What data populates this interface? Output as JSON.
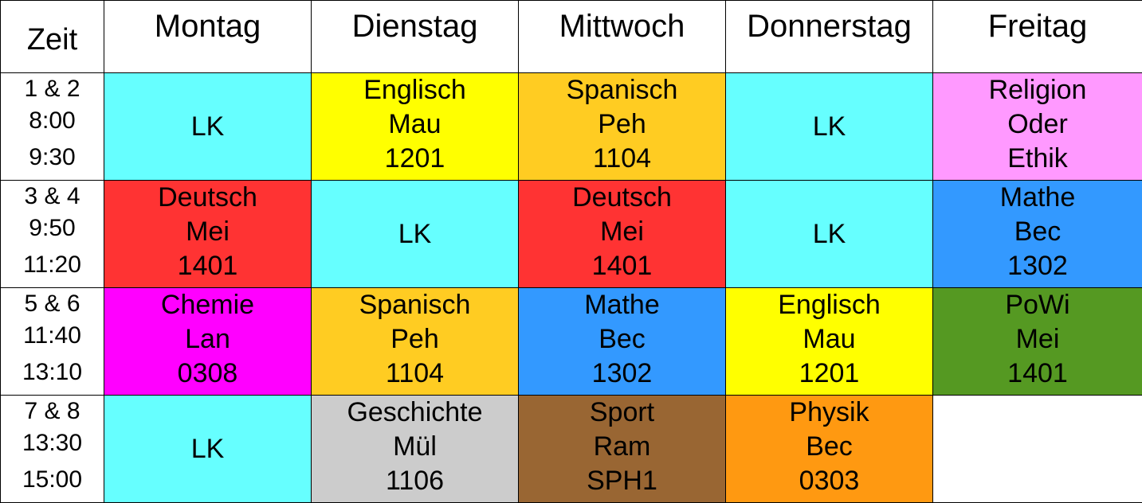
{
  "header": {
    "time_label": "Zeit",
    "days": [
      "Montag",
      "Dienstag",
      "Mittwoch",
      "Donnerstag",
      "Freitag"
    ]
  },
  "colors": {
    "lk": "#66ffff",
    "englisch": "#ffff00",
    "spanisch": "#ffcc22",
    "religion": "#ff99ff",
    "deutsch": "#ff3333",
    "mathe": "#3399ff",
    "chemie": "#ff00ff",
    "powi": "#559922",
    "geschichte": "#cccccc",
    "sport": "#996633",
    "physik": "#ff9911",
    "empty": "#ffffff"
  },
  "rows": [
    {
      "time": {
        "period": "1 & 2",
        "start": "8:00",
        "end": "9:30"
      },
      "cells": [
        {
          "color": "lk",
          "subject": "LK"
        },
        {
          "color": "englisch",
          "subject": "Englisch",
          "teacher": "Mau",
          "room": "1201"
        },
        {
          "color": "spanisch",
          "subject": "Spanisch",
          "teacher": "Peh",
          "room": "1104"
        },
        {
          "color": "lk",
          "subject": "LK"
        },
        {
          "color": "religion",
          "subject": "Religion",
          "teacher": "Oder",
          "room": "Ethik"
        }
      ]
    },
    {
      "time": {
        "period": "3 & 4",
        "start": "9:50",
        "end": "11:20"
      },
      "cells": [
        {
          "color": "deutsch",
          "subject": "Deutsch",
          "teacher": "Mei",
          "room": "1401"
        },
        {
          "color": "lk",
          "subject": "LK"
        },
        {
          "color": "deutsch",
          "subject": "Deutsch",
          "teacher": "Mei",
          "room": "1401"
        },
        {
          "color": "lk",
          "subject": "LK"
        },
        {
          "color": "mathe",
          "subject": "Mathe",
          "teacher": "Bec",
          "room": "1302"
        }
      ]
    },
    {
      "time": {
        "period": "5 & 6",
        "start": "11:40",
        "end": "13:10"
      },
      "cells": [
        {
          "color": "chemie",
          "subject": "Chemie",
          "teacher": "Lan",
          "room": "0308"
        },
        {
          "color": "spanisch",
          "subject": "Spanisch",
          "teacher": "Peh",
          "room": "1104"
        },
        {
          "color": "mathe",
          "subject": "Mathe",
          "teacher": "Bec",
          "room": "1302"
        },
        {
          "color": "englisch",
          "subject": "Englisch",
          "teacher": "Mau",
          "room": "1201"
        },
        {
          "color": "powi",
          "subject": "PoWi",
          "teacher": "Mei",
          "room": "1401"
        }
      ]
    },
    {
      "time": {
        "period": "7 & 8",
        "start": "13:30",
        "end": "15:00"
      },
      "cells": [
        {
          "color": "lk",
          "subject": "LK"
        },
        {
          "color": "geschichte",
          "subject": "Geschichte",
          "teacher": "Mül",
          "room": "1106"
        },
        {
          "color": "sport",
          "subject": "Sport",
          "teacher": "Ram",
          "room": "SPH1"
        },
        {
          "color": "physik",
          "subject": "Physik",
          "teacher": "Bec",
          "room": "0303"
        },
        {
          "color": "empty"
        }
      ]
    }
  ]
}
